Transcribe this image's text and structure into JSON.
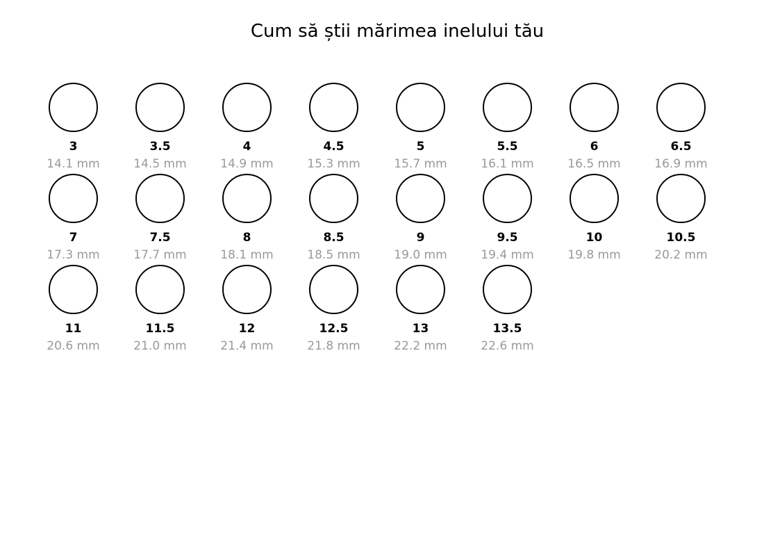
{
  "title": "Cum să știi mărimea inelului tău",
  "unit": "mm",
  "colors": {
    "background": "#ffffff",
    "circle_stroke": "#000000",
    "size_label": "#000000",
    "diameter_label": "#999999"
  },
  "rows": [
    [
      {
        "size": "3",
        "mm": "14.1 mm"
      },
      {
        "size": "3.5",
        "mm": "14.5 mm"
      },
      {
        "size": "4",
        "mm": "14.9 mm"
      },
      {
        "size": "4.5",
        "mm": "15.3 mm"
      },
      {
        "size": "5",
        "mm": "15.7 mm"
      },
      {
        "size": "5.5",
        "mm": "16.1 mm"
      },
      {
        "size": "6",
        "mm": "16.5 mm"
      },
      {
        "size": "6.5",
        "mm": "16.9 mm"
      }
    ],
    [
      {
        "size": "7",
        "mm": "17.3 mm"
      },
      {
        "size": "7.5",
        "mm": "17.7 mm"
      },
      {
        "size": "8",
        "mm": "18.1 mm"
      },
      {
        "size": "8.5",
        "mm": "18.5 mm"
      },
      {
        "size": "9",
        "mm": "19.0 mm"
      },
      {
        "size": "9.5",
        "mm": "19.4 mm"
      },
      {
        "size": "10",
        "mm": "19.8 mm"
      },
      {
        "size": "10.5",
        "mm": "20.2 mm"
      }
    ],
    [
      {
        "size": "11",
        "mm": "20.6 mm"
      },
      {
        "size": "11.5",
        "mm": "21.0 mm"
      },
      {
        "size": "12",
        "mm": "21.4 mm"
      },
      {
        "size": "12.5",
        "mm": "21.8 mm"
      },
      {
        "size": "13",
        "mm": "22.2 mm"
      },
      {
        "size": "13.5",
        "mm": "22.6 mm"
      }
    ]
  ]
}
